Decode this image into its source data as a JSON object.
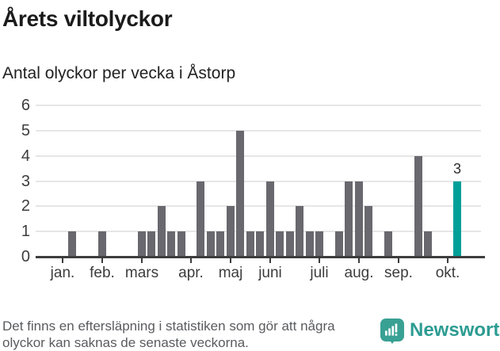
{
  "header": {
    "title": "Årets viltolyckor",
    "subtitle": "Antal olyckor per vecka i Åstorp"
  },
  "footer": {
    "line1": "Det finns en eftersläpning i statistiken som gör att några",
    "line2": "olyckor kan saknas de senaste veckorna.",
    "brand": "Newsworthy",
    "brand_icon": "bar-chart-speech-bubble-icon"
  },
  "colors": {
    "bar": "#68686e",
    "highlight": "#00a099",
    "grid": "#e6e6e6",
    "axis": "#3d3d3d",
    "label_text": "#3d3d3d",
    "title_text": "#1b1b1b",
    "footer_text": "#5a5b5f",
    "brand_teal": "#2d9c92",
    "badge_teal": "#38a193"
  },
  "chart_data": {
    "type": "bar",
    "title": "Årets viltolyckor",
    "subtitle": "Antal olyckor per vecka i Åstorp",
    "x_unit": "week",
    "n_slots": 43,
    "values": [
      0,
      0,
      1,
      0,
      0,
      1,
      0,
      0,
      0,
      1,
      1,
      2,
      1,
      1,
      0,
      3,
      1,
      1,
      2,
      5,
      1,
      1,
      3,
      1,
      1,
      2,
      1,
      1,
      0,
      1,
      3,
      3,
      2,
      0,
      1,
      0,
      0,
      4,
      1,
      0,
      0,
      3,
      0
    ],
    "highlight_index": 41,
    "highlight_value": 3,
    "highlight_label": "3",
    "month_ticks": [
      {
        "label": "jan.",
        "slot": 1
      },
      {
        "label": "feb.",
        "slot": 5
      },
      {
        "label": "mars",
        "slot": 9
      },
      {
        "label": "apr.",
        "slot": 14
      },
      {
        "label": "maj",
        "slot": 18
      },
      {
        "label": "juni",
        "slot": 22
      },
      {
        "label": "juli",
        "slot": 27
      },
      {
        "label": "aug.",
        "slot": 31
      },
      {
        "label": "sep.",
        "slot": 35
      },
      {
        "label": "okt.",
        "slot": 40
      }
    ],
    "ylim": [
      0,
      6
    ],
    "yticks": [
      0,
      1,
      2,
      3,
      4,
      5,
      6
    ],
    "grid": true,
    "legend": false
  }
}
